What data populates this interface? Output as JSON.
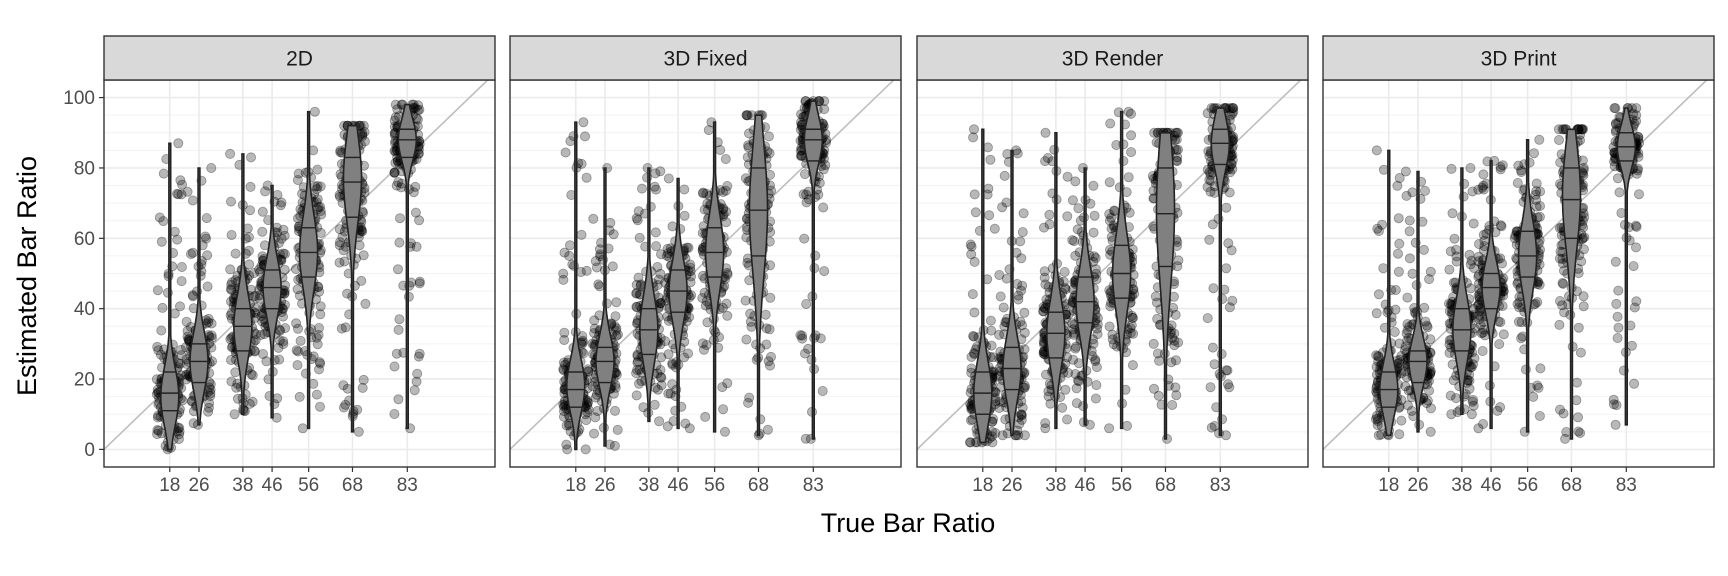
{
  "chart_data": {
    "type": "faceted-violin-jitter",
    "xlabel": "True Bar Ratio",
    "ylabel": "Estimated Bar Ratio",
    "ylim": [
      -5,
      105
    ],
    "xlim": [
      0,
      107
    ],
    "x_ticks": [
      18,
      26,
      38,
      46,
      56,
      68,
      83
    ],
    "y_ticks": [
      0,
      20,
      40,
      60,
      80,
      100
    ],
    "grid": true,
    "reference_line": "y = x",
    "colors": {
      "points": "#000000",
      "violin_fill": "#808080",
      "panel_border": "#333333",
      "strip_fill": "#d9d9d9",
      "grid": "#ebebeb",
      "reference_line": "#bebebe"
    },
    "panels": [
      {
        "title": "2D",
        "groups": [
          {
            "x": 18,
            "median": 16,
            "q1": 11,
            "q3": 22,
            "min": 0,
            "max": 87,
            "peak": 15
          },
          {
            "x": 26,
            "median": 25,
            "q1": 19,
            "q3": 30,
            "min": 7,
            "max": 80,
            "peak": 25
          },
          {
            "x": 38,
            "median": 35,
            "q1": 28,
            "q3": 40,
            "min": 10,
            "max": 84,
            "peak": 35
          },
          {
            "x": 46,
            "median": 46,
            "q1": 40,
            "q3": 51,
            "min": 9,
            "max": 75,
            "peak": 46
          },
          {
            "x": 56,
            "median": 56,
            "q1": 49,
            "q3": 63,
            "min": 6,
            "max": 96,
            "peak": 56
          },
          {
            "x": 68,
            "median": 76,
            "q1": 66,
            "q3": 83,
            "min": 5,
            "max": 92,
            "peak": 77
          },
          {
            "x": 83,
            "median": 88,
            "q1": 83,
            "q3": 91,
            "min": 6,
            "max": 98,
            "peak": 88
          }
        ]
      },
      {
        "title": "3D Fixed",
        "groups": [
          {
            "x": 18,
            "median": 17,
            "q1": 12,
            "q3": 22,
            "min": 0,
            "max": 93,
            "peak": 18
          },
          {
            "x": 26,
            "median": 25,
            "q1": 19,
            "q3": 29,
            "min": 1,
            "max": 80,
            "peak": 25
          },
          {
            "x": 38,
            "median": 34,
            "q1": 27,
            "q3": 40,
            "min": 8,
            "max": 80,
            "peak": 34
          },
          {
            "x": 46,
            "median": 45,
            "q1": 39,
            "q3": 51,
            "min": 6,
            "max": 77,
            "peak": 45
          },
          {
            "x": 56,
            "median": 56,
            "q1": 49,
            "q3": 63,
            "min": 5,
            "max": 93,
            "peak": 56
          },
          {
            "x": 68,
            "median": 68,
            "q1": 55,
            "q3": 80,
            "min": 4,
            "max": 95,
            "peak": 68
          },
          {
            "x": 83,
            "median": 88,
            "q1": 82,
            "q3": 91,
            "min": 3,
            "max": 99,
            "peak": 88
          }
        ]
      },
      {
        "title": "3D Render",
        "groups": [
          {
            "x": 18,
            "median": 16,
            "q1": 10,
            "q3": 22,
            "min": 2,
            "max": 91,
            "peak": 16
          },
          {
            "x": 26,
            "median": 23,
            "q1": 17,
            "q3": 29,
            "min": 4,
            "max": 85,
            "peak": 23
          },
          {
            "x": 38,
            "median": 33,
            "q1": 26,
            "q3": 39,
            "min": 6,
            "max": 90,
            "peak": 33
          },
          {
            "x": 46,
            "median": 42,
            "q1": 36,
            "q3": 49,
            "min": 7,
            "max": 80,
            "peak": 42
          },
          {
            "x": 56,
            "median": 50,
            "q1": 43,
            "q3": 58,
            "min": 6,
            "max": 96,
            "peak": 50
          },
          {
            "x": 68,
            "median": 67,
            "q1": 52,
            "q3": 80,
            "min": 3,
            "max": 90,
            "peak": 68
          },
          {
            "x": 83,
            "median": 87,
            "q1": 81,
            "q3": 91,
            "min": 4,
            "max": 97,
            "peak": 87
          }
        ]
      },
      {
        "title": "3D Print",
        "groups": [
          {
            "x": 18,
            "median": 17,
            "q1": 12,
            "q3": 22,
            "min": 4,
            "max": 85,
            "peak": 17
          },
          {
            "x": 26,
            "median": 25,
            "q1": 19,
            "q3": 28,
            "min": 5,
            "max": 79,
            "peak": 25
          },
          {
            "x": 38,
            "median": 34,
            "q1": 28,
            "q3": 40,
            "min": 10,
            "max": 80,
            "peak": 34
          },
          {
            "x": 46,
            "median": 46,
            "q1": 40,
            "q3": 50,
            "min": 6,
            "max": 82,
            "peak": 46
          },
          {
            "x": 56,
            "median": 55,
            "q1": 49,
            "q3": 62,
            "min": 5,
            "max": 88,
            "peak": 55
          },
          {
            "x": 68,
            "median": 71,
            "q1": 60,
            "q3": 80,
            "min": 3,
            "max": 91,
            "peak": 72
          },
          {
            "x": 83,
            "median": 86,
            "q1": 82,
            "q3": 90,
            "min": 7,
            "max": 97,
            "peak": 86
          }
        ]
      }
    ]
  }
}
